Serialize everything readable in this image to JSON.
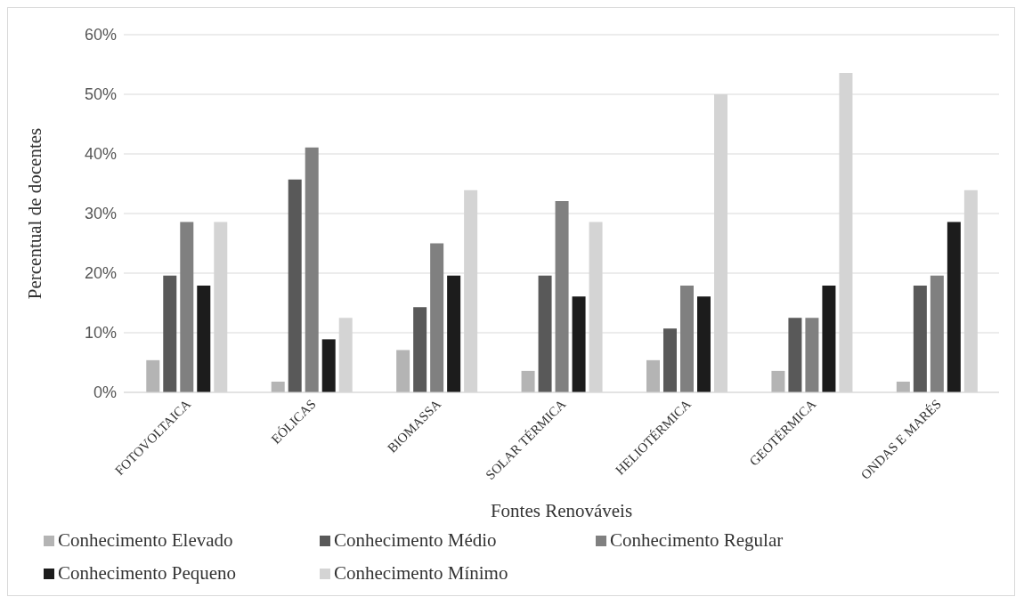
{
  "chart_data": {
    "type": "bar",
    "xlabel": "Fontes Renováveis",
    "ylabel": "Percentual de docentes",
    "categories": [
      "FOTOVOLTAICA",
      "EÓLICAS",
      "BIOMASSA",
      "SOLAR TÉRMICA",
      "HELIOTÉRMICA",
      "GEOTÉRMICA",
      "ONDAS E MARÉS"
    ],
    "series": [
      {
        "name": "Conhecimento Elevado",
        "color": "#b4b4b4",
        "values": [
          5.4,
          1.8,
          7.1,
          3.6,
          5.4,
          3.6,
          1.8
        ]
      },
      {
        "name": "Conhecimento Médio",
        "color": "#595959",
        "values": [
          19.6,
          35.7,
          14.3,
          19.6,
          10.7,
          12.5,
          17.9
        ]
      },
      {
        "name": "Conhecimento Regular",
        "color": "#808080",
        "values": [
          28.6,
          41.1,
          25.0,
          32.1,
          17.9,
          12.5,
          19.6
        ]
      },
      {
        "name": "Conhecimento Pequeno",
        "color": "#1c1c1c",
        "values": [
          17.9,
          8.9,
          19.6,
          16.1,
          16.1,
          17.9,
          28.6
        ]
      },
      {
        "name": "Conhecimento Mínimo",
        "color": "#d4d4d4",
        "values": [
          28.6,
          12.5,
          33.9,
          28.6,
          50.0,
          53.6,
          33.9
        ]
      }
    ],
    "ylim": [
      0,
      60
    ],
    "yticks": [
      {
        "value": 0,
        "label": "0%"
      },
      {
        "value": 10,
        "label": "10%"
      },
      {
        "value": 20,
        "label": "20%"
      },
      {
        "value": 30,
        "label": "30%"
      },
      {
        "value": 40,
        "label": "40%"
      },
      {
        "value": 50,
        "label": "50%"
      },
      {
        "value": 60,
        "label": "60%"
      }
    ],
    "grid": "y",
    "legend": "bottom"
  }
}
